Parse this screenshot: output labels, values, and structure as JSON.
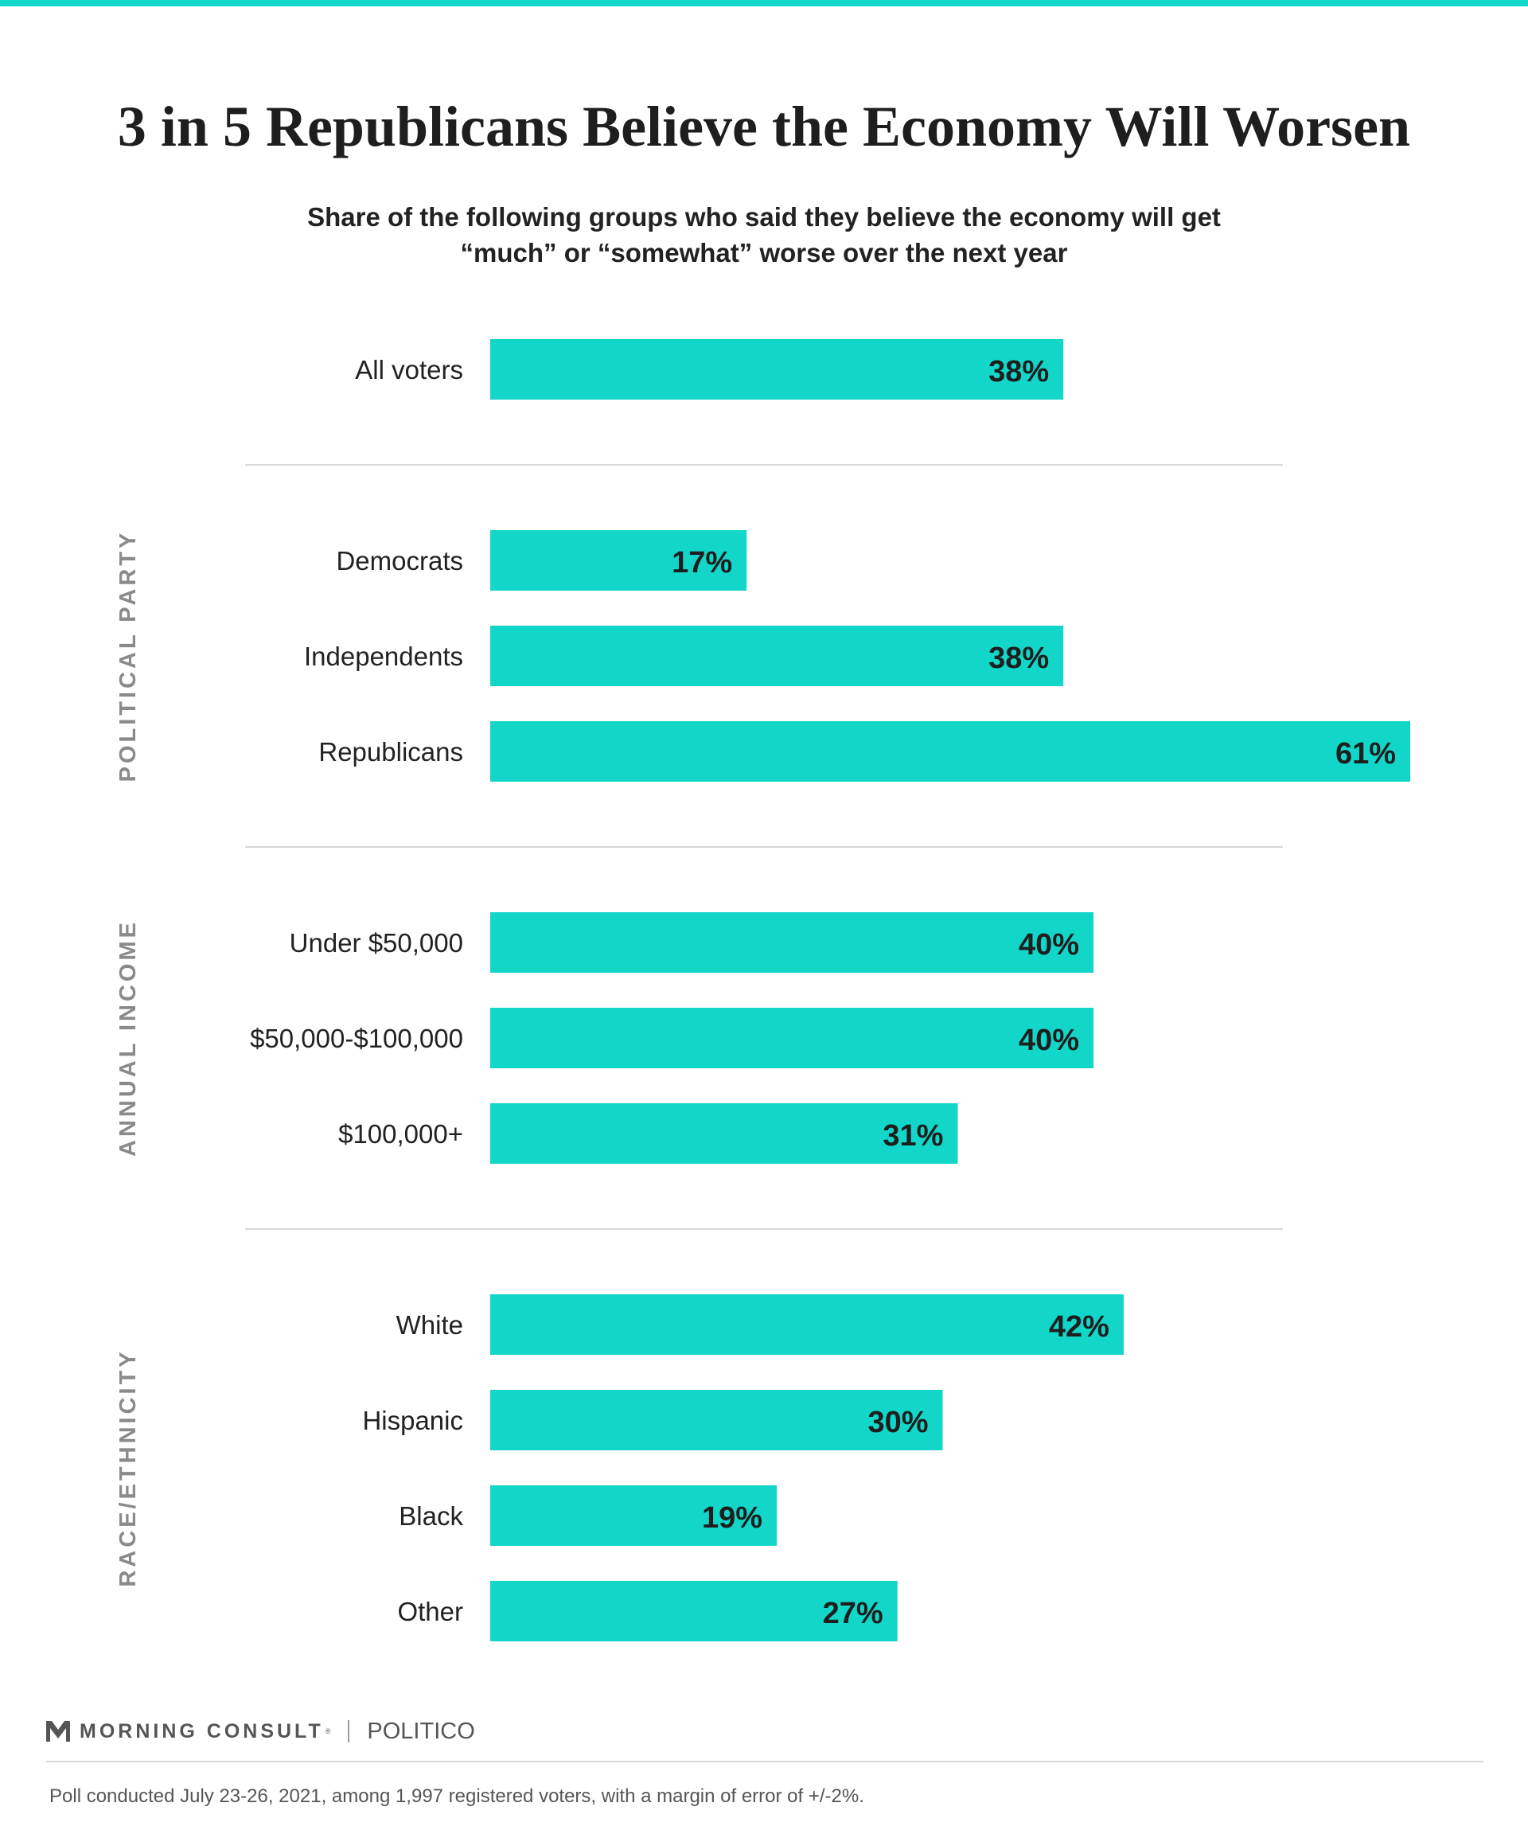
{
  "title": "3 in 5 Republicans Believe the Economy Will Worsen",
  "subtitle": {
    "line1": "Share of the following groups who said they believe the economy will get",
    "line2": "“much” or “somewhat” worse over the next year"
  },
  "colors": {
    "bar": "#12d6c8",
    "accent_rule": "#12d6c8",
    "group_label": "#8a8a8a",
    "divider": "#d9d9d9"
  },
  "chart_data": {
    "type": "bar",
    "orientation": "horizontal",
    "value_unit": "%",
    "xlim": [
      0,
      61
    ],
    "grid": false,
    "groups": [
      {
        "label": "",
        "categories": [
          "All voters"
        ],
        "values": [
          38
        ]
      },
      {
        "label": "POLITICAL PARTY",
        "categories": [
          "Democrats",
          "Independents",
          "Republicans"
        ],
        "values": [
          17,
          38,
          61
        ]
      },
      {
        "label": "ANNUAL INCOME",
        "categories": [
          "Under $50,000",
          "$50,000-$100,000",
          "$100,000+"
        ],
        "values": [
          40,
          40,
          31
        ]
      },
      {
        "label": "RACE/ETHNICITY",
        "categories": [
          "White",
          "Hispanic",
          "Black",
          "Other"
        ],
        "values": [
          42,
          30,
          19,
          27
        ]
      }
    ]
  },
  "footer": {
    "brand": "MORNING CONSULT",
    "trademark": "®",
    "partner": "POLITICO",
    "logo_icon": "morning-consult-m-icon",
    "note": "Poll conducted July 23-26, 2021, among 1,997 registered voters, with a margin of error of +/-2%."
  }
}
